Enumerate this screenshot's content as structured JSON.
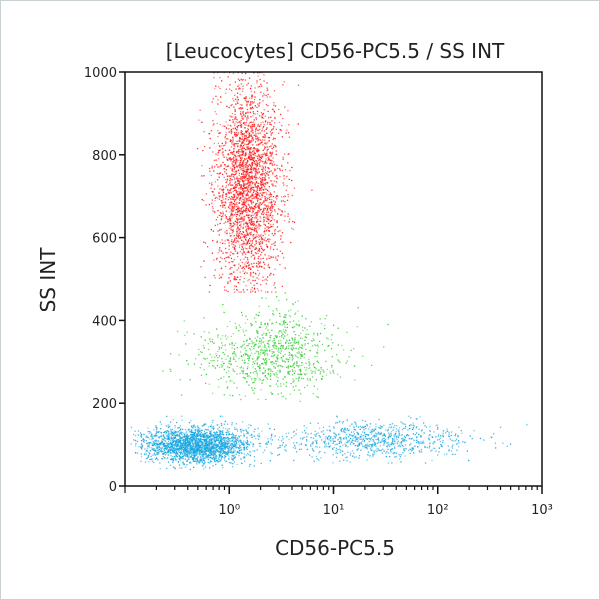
{
  "chart_data": {
    "type": "scatter",
    "title": "[Leucocytes] CD56-PC5.5 / SS INT",
    "xlabel": "CD56-PC5.5",
    "ylabel": "SS INT",
    "xscale": "log",
    "xlim": [
      0.1,
      1000
    ],
    "ylim": [
      0,
      1000
    ],
    "xticks": [
      {
        "value": 1,
        "label": "10⁰"
      },
      {
        "value": 10,
        "label": "10¹"
      },
      {
        "value": 100,
        "label": "10²"
      },
      {
        "value": 1000,
        "label": "10³"
      }
    ],
    "yticks": [
      {
        "value": 0,
        "label": "0"
      },
      {
        "value": 200,
        "label": "200"
      },
      {
        "value": 400,
        "label": "400"
      },
      {
        "value": 600,
        "label": "600"
      },
      {
        "value": 800,
        "label": "800"
      },
      {
        "value": 1000,
        "label": "1000"
      }
    ],
    "grid": false,
    "populations": [
      {
        "color": "#ff1a1a",
        "x_center": 1.5,
        "x_log_sd": 0.16,
        "y_center": 730,
        "y_sd": 125,
        "y_range": [
          470,
          1000
        ],
        "count": 2600
      },
      {
        "color": "#33cc33",
        "x_center": 2.5,
        "x_log_sd": 0.33,
        "y_center": 320,
        "y_sd": 50,
        "y_range": [
          200,
          470
        ],
        "count": 900
      },
      {
        "color": "#1aa7e0",
        "x_center": 0.5,
        "x_log_sd": 0.25,
        "y_center": 100,
        "y_sd": 22,
        "y_range": [
          40,
          170
        ],
        "count": 2200
      },
      {
        "color": "#1aa7e0",
        "x_center": 25,
        "x_log_sd": 0.45,
        "y_center": 112,
        "y_sd": 22,
        "y_range": [
          50,
          170
        ],
        "count": 800
      }
    ]
  }
}
